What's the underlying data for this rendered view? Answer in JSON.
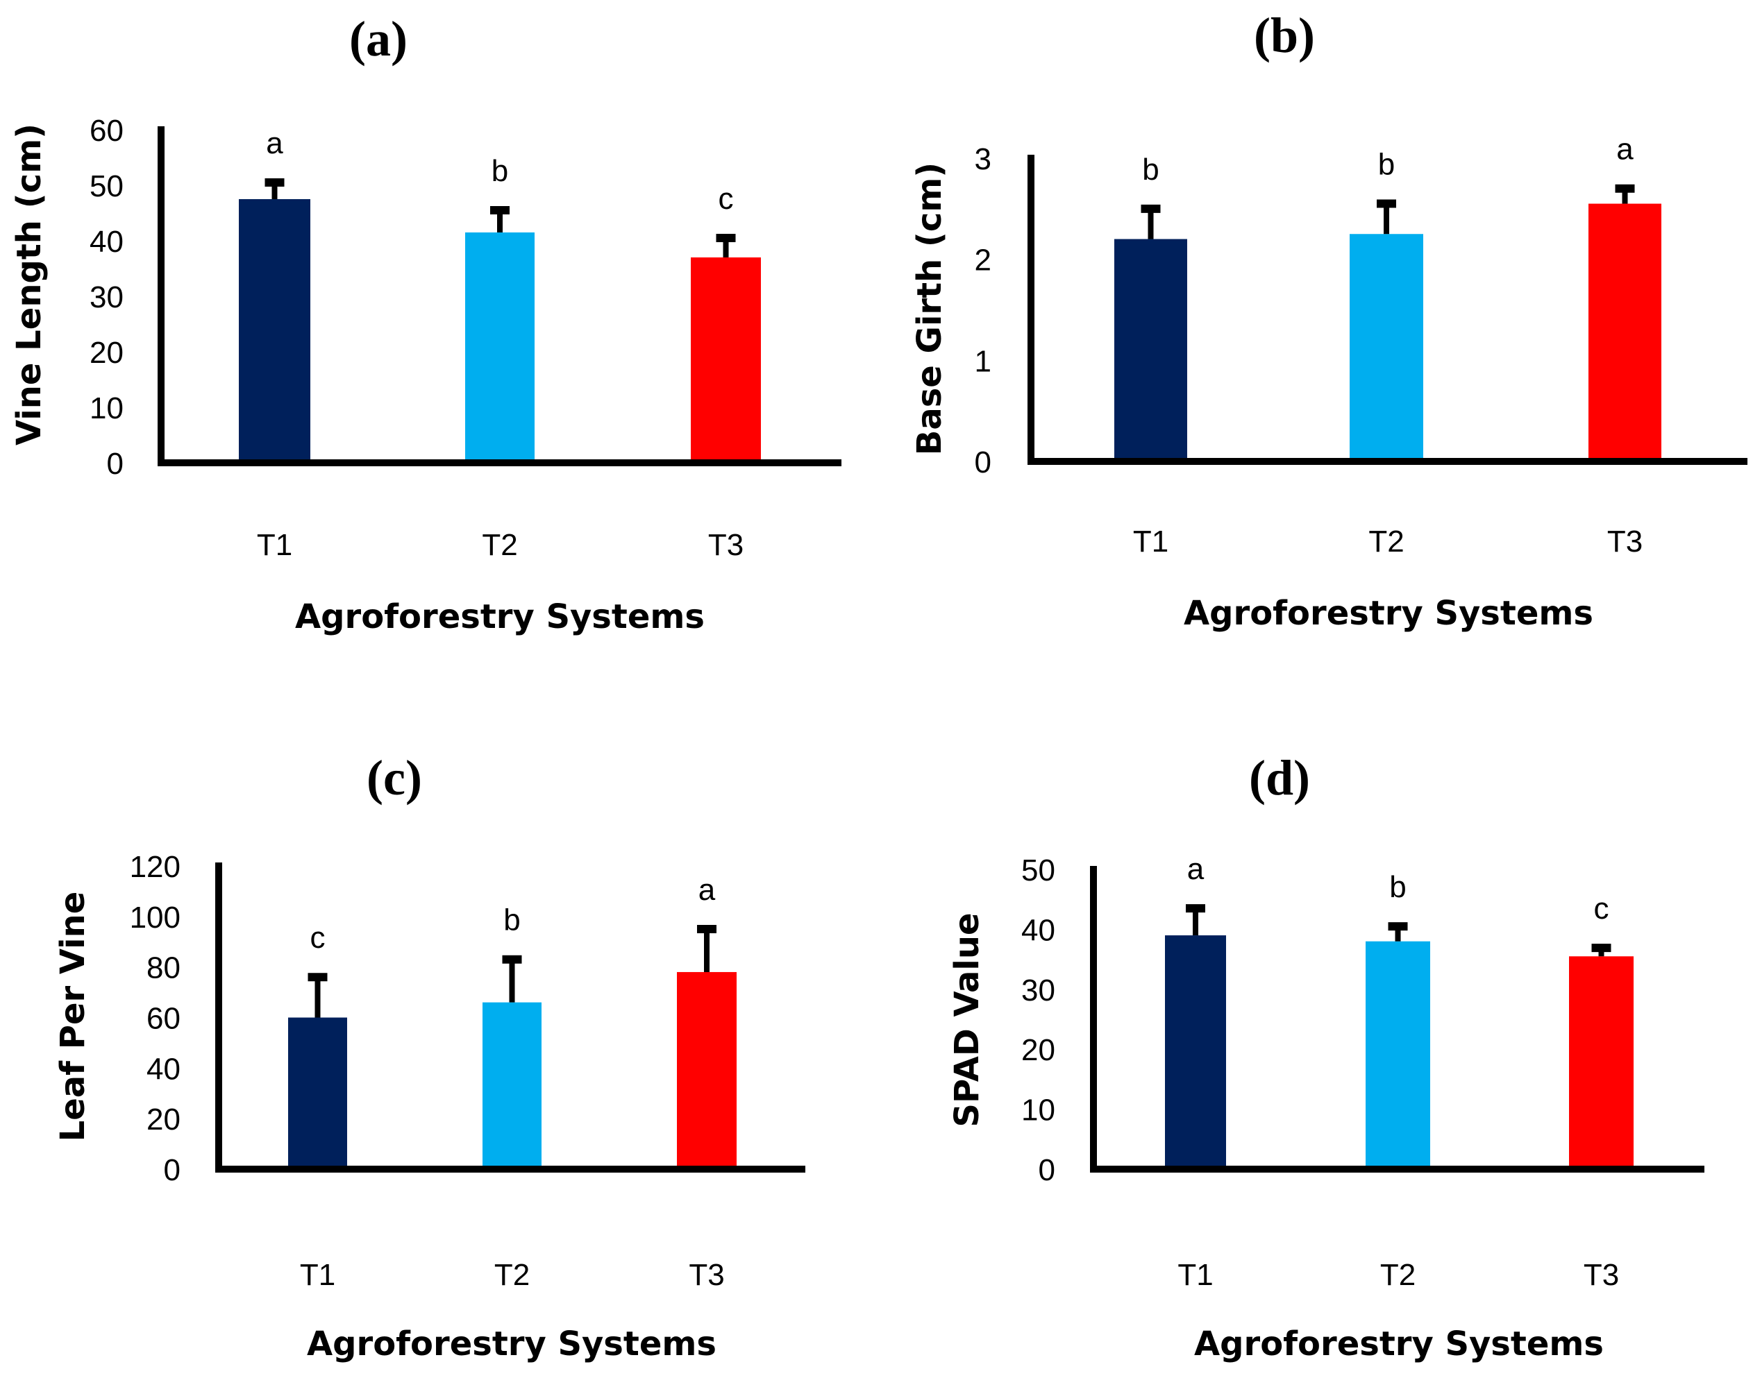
{
  "figure": {
    "colors": {
      "T1": "#00205b",
      "T2": "#00aeef",
      "T3": "#ff0000",
      "axis": "#000000"
    }
  },
  "chart_data": [
    {
      "type": "bar",
      "panel": "(a)",
      "title": "(a)",
      "xlabel": "Agroforestry Systems",
      "ylabel": "Vine Length (cm)",
      "categories": [
        "T1",
        "T2",
        "T3"
      ],
      "values": [
        47.5,
        41.5,
        37.0
      ],
      "errors": [
        3.0,
        4.0,
        3.5
      ],
      "significance": [
        "a",
        "b",
        "c"
      ],
      "ylim": [
        0,
        60
      ],
      "yticks": [
        0,
        10,
        20,
        30,
        40,
        50,
        60
      ],
      "grid": false,
      "legend": "none"
    },
    {
      "type": "bar",
      "panel": "(b)",
      "title": "(b)",
      "xlabel": "Agroforestry Systems",
      "ylabel": "Base Girth (cm)",
      "categories": [
        "T1",
        "T2",
        "T3"
      ],
      "values": [
        2.2,
        2.25,
        2.55
      ],
      "errors": [
        0.3,
        0.3,
        0.15
      ],
      "significance": [
        "b",
        "b",
        "a"
      ],
      "ylim": [
        0,
        3
      ],
      "yticks": [
        0,
        1,
        2,
        3
      ],
      "grid": false,
      "legend": "none"
    },
    {
      "type": "bar",
      "panel": "(c)",
      "title": "(c)",
      "xlabel": "Agroforestry Systems",
      "ylabel": "Leaf Per Vine",
      "categories": [
        "T1",
        "T2",
        "T3"
      ],
      "values": [
        60,
        66,
        78
      ],
      "errors": [
        16,
        17,
        17
      ],
      "significance": [
        "c",
        "b",
        "a"
      ],
      "ylim": [
        0,
        120
      ],
      "yticks": [
        0,
        20,
        40,
        60,
        80,
        100,
        120
      ],
      "grid": false,
      "legend": "none"
    },
    {
      "type": "bar",
      "panel": "(d)",
      "title": "(d)",
      "xlabel": "Agroforestry Systems",
      "ylabel": "SPAD Value",
      "categories": [
        "T1",
        "T2",
        "T3"
      ],
      "values": [
        39.0,
        38.0,
        35.5
      ],
      "errors": [
        4.5,
        2.5,
        1.4
      ],
      "significance": [
        "a",
        "b",
        "c"
      ],
      "ylim": [
        0,
        50
      ],
      "yticks": [
        0,
        10,
        20,
        30,
        40,
        50
      ],
      "grid": false,
      "legend": "none"
    }
  ]
}
